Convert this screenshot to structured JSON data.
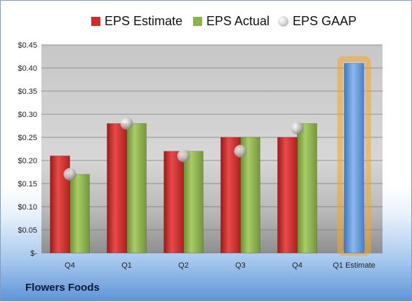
{
  "chart_data": {
    "type": "bar",
    "categories": [
      "Q4",
      "Q1",
      "Q2",
      "Q3",
      "Q4",
      "Q1 Estimate"
    ],
    "series": [
      {
        "name": "EPS Estimate",
        "values": [
          0.21,
          0.28,
          0.22,
          0.25,
          0.25,
          null
        ],
        "color": "#d42a2a"
      },
      {
        "name": "EPS Actual",
        "values": [
          0.17,
          0.28,
          0.22,
          0.25,
          0.28,
          null
        ],
        "color": "#8ab34a"
      },
      {
        "name": "EPS GAAP",
        "values": [
          0.17,
          0.28,
          0.21,
          0.22,
          0.27,
          null
        ],
        "color": "#bfbfbf"
      },
      {
        "name": "",
        "values": [
          null,
          null,
          null,
          null,
          null,
          0.41
        ],
        "color": "#5e97d8"
      }
    ],
    "highlight_category": "Q1 Estimate",
    "highlight_color": "#f5a623",
    "yticks": [
      "$-",
      "$0.05",
      "$0.10",
      "$0.15",
      "$0.20",
      "$0.25",
      "$0.30",
      "$0.35",
      "$0.40",
      "$0.45"
    ],
    "ylim": [
      0,
      0.45
    ],
    "grid": true,
    "legend_position": "top",
    "title": "",
    "xlabel": "",
    "ylabel": "",
    "footer": "Flowers Foods"
  }
}
